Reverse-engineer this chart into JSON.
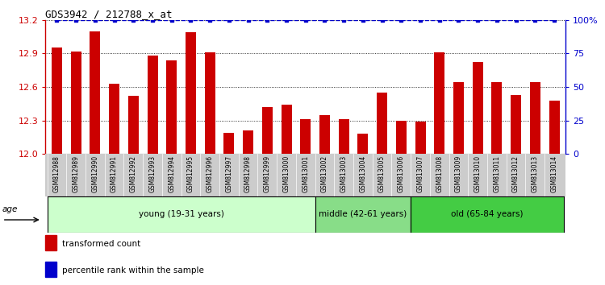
{
  "title": "GDS3942 / 212788_x_at",
  "samples": [
    "GSM812988",
    "GSM812989",
    "GSM812990",
    "GSM812991",
    "GSM812992",
    "GSM812993",
    "GSM812994",
    "GSM812995",
    "GSM812996",
    "GSM812997",
    "GSM812998",
    "GSM812999",
    "GSM813000",
    "GSM813001",
    "GSM813002",
    "GSM813003",
    "GSM813004",
    "GSM813005",
    "GSM813006",
    "GSM813007",
    "GSM813008",
    "GSM813009",
    "GSM813010",
    "GSM813011",
    "GSM813012",
    "GSM813013",
    "GSM813014"
  ],
  "values": [
    12.95,
    12.92,
    13.1,
    12.63,
    12.52,
    12.88,
    12.84,
    13.09,
    12.91,
    12.19,
    12.21,
    12.42,
    12.44,
    12.31,
    12.35,
    12.31,
    12.18,
    12.55,
    12.3,
    12.29,
    12.91,
    12.64,
    12.82,
    12.64,
    12.53,
    12.64,
    12.48
  ],
  "ylim": [
    12.0,
    13.2
  ],
  "yticks": [
    12.0,
    12.3,
    12.6,
    12.9,
    13.2
  ],
  "right_yticks": [
    0,
    25,
    50,
    75,
    100
  ],
  "right_ylabels": [
    "0",
    "25",
    "50",
    "75",
    "100%"
  ],
  "bar_color": "#cc0000",
  "percentile_color": "#0000cc",
  "groups": [
    {
      "label": "young (19-31 years)",
      "start": 0,
      "end": 14,
      "color": "#ccffcc"
    },
    {
      "label": "middle (42-61 years)",
      "start": 14,
      "end": 19,
      "color": "#88dd88"
    },
    {
      "label": "old (65-84 years)",
      "start": 19,
      "end": 27,
      "color": "#44cc44"
    }
  ],
  "age_label": "age",
  "legend_items": [
    {
      "label": "transformed count",
      "color": "#cc0000"
    },
    {
      "label": "percentile rank within the sample",
      "color": "#0000cc"
    }
  ],
  "bg_color": "#ffffff",
  "tick_bg_color": "#cccccc"
}
